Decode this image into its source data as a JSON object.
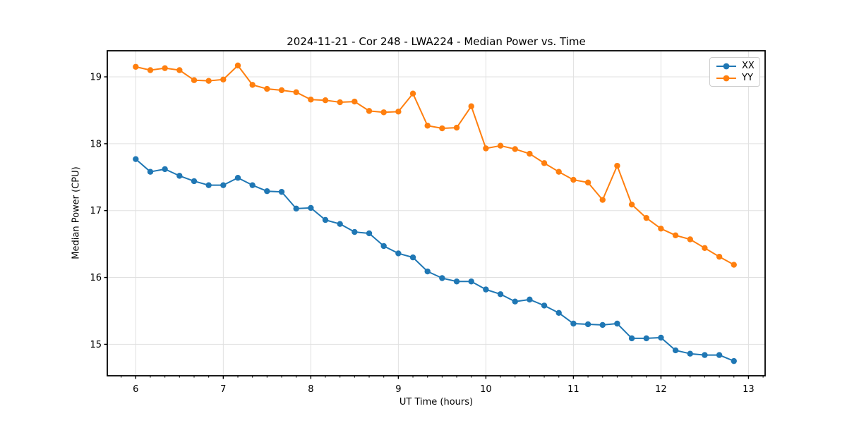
{
  "chart_data": {
    "type": "line",
    "title": "2024-11-21 - Cor 248 - LWA224 - Median Power vs. Time",
    "xlabel": "UT Time (hours)",
    "ylabel": "Median Power (CPU)",
    "xlim": [
      5.675,
      13.19
    ],
    "ylim": [
      14.53,
      19.39
    ],
    "x_ticks": [
      6,
      7,
      8,
      9,
      10,
      11,
      12,
      13
    ],
    "y_ticks": [
      15,
      16,
      17,
      18,
      19
    ],
    "x_minor_step": 0.166667,
    "grid": true,
    "legend_position": "upper right",
    "background_color": "#ffffff",
    "grid_color": "#e0e0e0",
    "x": [
      6.0,
      6.1667,
      6.3333,
      6.5,
      6.6667,
      6.8333,
      7.0,
      7.1667,
      7.3333,
      7.5,
      7.6667,
      7.8333,
      8.0,
      8.1667,
      8.3333,
      8.5,
      8.6667,
      8.8333,
      9.0,
      9.1667,
      9.3333,
      9.5,
      9.6667,
      9.8333,
      10.0,
      10.1667,
      10.3333,
      10.5,
      10.6667,
      10.8333,
      11.0,
      11.1667,
      11.3333,
      11.5,
      11.6667,
      11.8333,
      12.0,
      12.1667,
      12.3333,
      12.5,
      12.6667,
      12.8333
    ],
    "series": [
      {
        "name": "XX",
        "color": "#1f77b4",
        "values": [
          17.77,
          17.58,
          17.62,
          17.52,
          17.44,
          17.38,
          17.38,
          17.49,
          17.38,
          17.29,
          17.28,
          17.03,
          17.04,
          16.86,
          16.8,
          16.68,
          16.66,
          16.47,
          16.36,
          16.3,
          16.09,
          15.99,
          15.94,
          15.94,
          15.82,
          15.75,
          15.64,
          15.67,
          15.58,
          15.47,
          15.31,
          15.3,
          15.29,
          15.31,
          15.09,
          15.09,
          15.1,
          14.91,
          14.86,
          14.84,
          14.84,
          14.75
        ]
      },
      {
        "name": "YY",
        "color": "#ff7f0e",
        "values": [
          19.15,
          19.1,
          19.13,
          19.1,
          18.95,
          18.94,
          18.96,
          19.17,
          18.88,
          18.82,
          18.8,
          18.77,
          18.66,
          18.65,
          18.62,
          18.63,
          18.49,
          18.47,
          18.48,
          18.75,
          18.27,
          18.23,
          18.24,
          18.56,
          17.93,
          17.97,
          17.92,
          17.85,
          17.71,
          17.58,
          17.46,
          17.42,
          17.16,
          17.67,
          17.09,
          16.89,
          16.73,
          16.63,
          16.57,
          16.44,
          16.31,
          16.19
        ]
      }
    ]
  }
}
